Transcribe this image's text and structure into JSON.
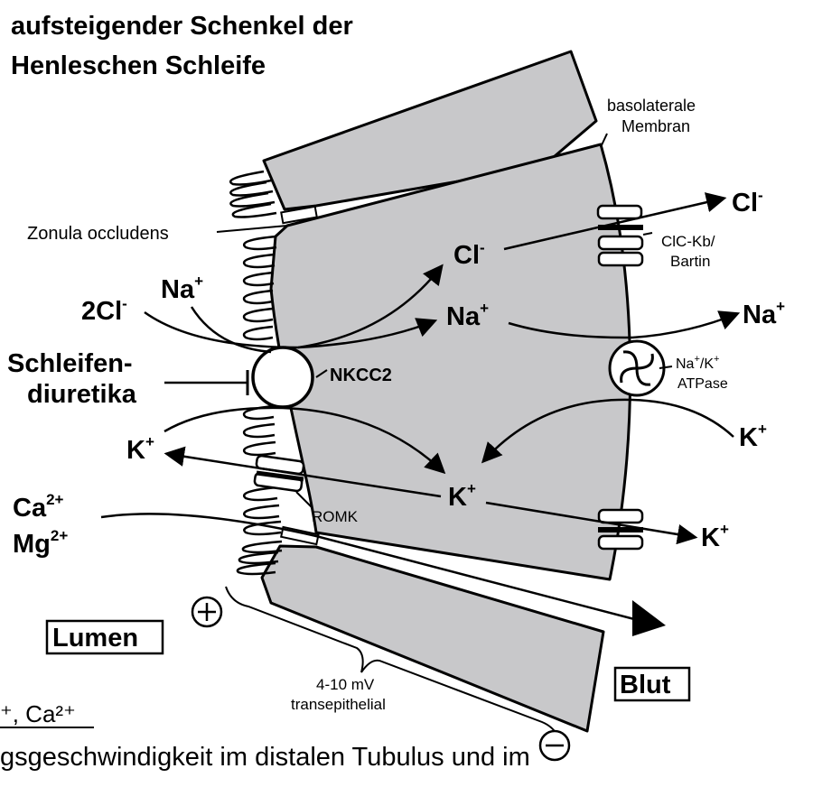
{
  "title": {
    "line1": "aufsteigender Schenkel der",
    "line2": "Henleschen Schleife"
  },
  "labels": {
    "basolateral_1": "basolaterale",
    "basolateral_2": "Membran",
    "zonula": "Zonula occludens",
    "cl_out": "Cl",
    "cl_in": "Cl",
    "clc_1": "ClC-Kb/",
    "clc_2": "Bartin",
    "na_lumen": "Na",
    "twocl": "2Cl",
    "na_in": "Na",
    "na_out": "Na",
    "schleifen_1": "Schleifen-",
    "schleifen_2": "diuretika",
    "nkcc2": "NKCC2",
    "atpase_1a": "Na",
    "atpase_1b": "/K",
    "atpase_2": "ATPase",
    "k_lumen": "K",
    "k_in": "K",
    "k_blood_in": "K",
    "k_out": "K",
    "romk": "ROMK",
    "ca": "Ca",
    "mg": "Mg",
    "lumen": "Lumen",
    "blut": "Blut",
    "voltage_1": "4-10 mV",
    "voltage_2": "transepithelial",
    "plus_sign": "+",
    "minus_sign": "−",
    "bottom_fragment": "⁺, Ca²⁺",
    "bottom_line": "gsgeschwindigkeit im distalen Tubulus und im"
  },
  "colors": {
    "cell_fill": "#c8c8ca",
    "stroke": "#000000",
    "background": "#ffffff"
  }
}
